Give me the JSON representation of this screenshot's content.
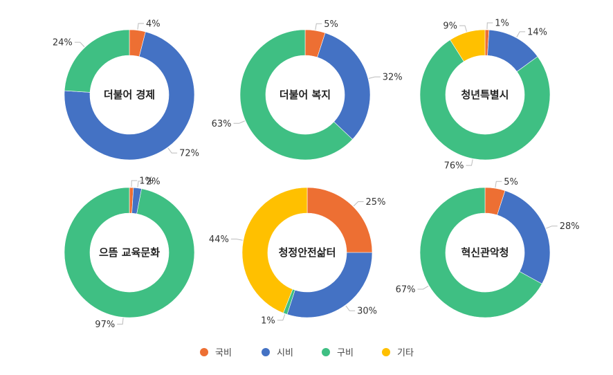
{
  "chart_data": {
    "type": "pie",
    "legend": {
      "placement": "bottom",
      "items": [
        {
          "name": "국비",
          "color": "#ED6F33"
        },
        {
          "name": "시비",
          "color": "#4472C4"
        },
        {
          "name": "구비",
          "color": "#3FBF83"
        },
        {
          "name": "기타",
          "color": "#FFC000"
        }
      ]
    },
    "charts": [
      {
        "title": "더불어 경제",
        "slices": [
          {
            "series": "국비",
            "value": 4,
            "label": "4%"
          },
          {
            "series": "시비",
            "value": 72,
            "label": "72%"
          },
          {
            "series": "구비",
            "value": 24,
            "label": "24%"
          }
        ]
      },
      {
        "title": "더불어 복지",
        "slices": [
          {
            "series": "국비",
            "value": 5,
            "label": "5%"
          },
          {
            "series": "시비",
            "value": 32,
            "label": "32%"
          },
          {
            "series": "구비",
            "value": 63,
            "label": "63%"
          }
        ]
      },
      {
        "title": "청년특별시",
        "slices": [
          {
            "series": "국비",
            "value": 1,
            "label": "1%"
          },
          {
            "series": "시비",
            "value": 14,
            "label": "14%"
          },
          {
            "series": "구비",
            "value": 76,
            "label": "76%"
          },
          {
            "series": "기타",
            "value": 9,
            "label": "9%"
          }
        ]
      },
      {
        "title": "으뜸 교육문화",
        "slices": [
          {
            "series": "국비",
            "value": 1,
            "label": "1%"
          },
          {
            "series": "시비",
            "value": 2,
            "label": "2%"
          },
          {
            "series": "구비",
            "value": 97,
            "label": "97%"
          }
        ]
      },
      {
        "title": "청정안전삶터",
        "slices": [
          {
            "series": "국비",
            "value": 25,
            "label": "25%"
          },
          {
            "series": "시비",
            "value": 30,
            "label": "30%"
          },
          {
            "series": "구비",
            "value": 1,
            "label": "1%"
          },
          {
            "series": "기타",
            "value": 44,
            "label": "44%"
          }
        ]
      },
      {
        "title": "혁신관악청",
        "slices": [
          {
            "series": "국비",
            "value": 5,
            "label": "5%"
          },
          {
            "series": "시비",
            "value": 28,
            "label": "28%"
          },
          {
            "series": "구비",
            "value": 67,
            "label": "67%"
          }
        ]
      }
    ]
  }
}
